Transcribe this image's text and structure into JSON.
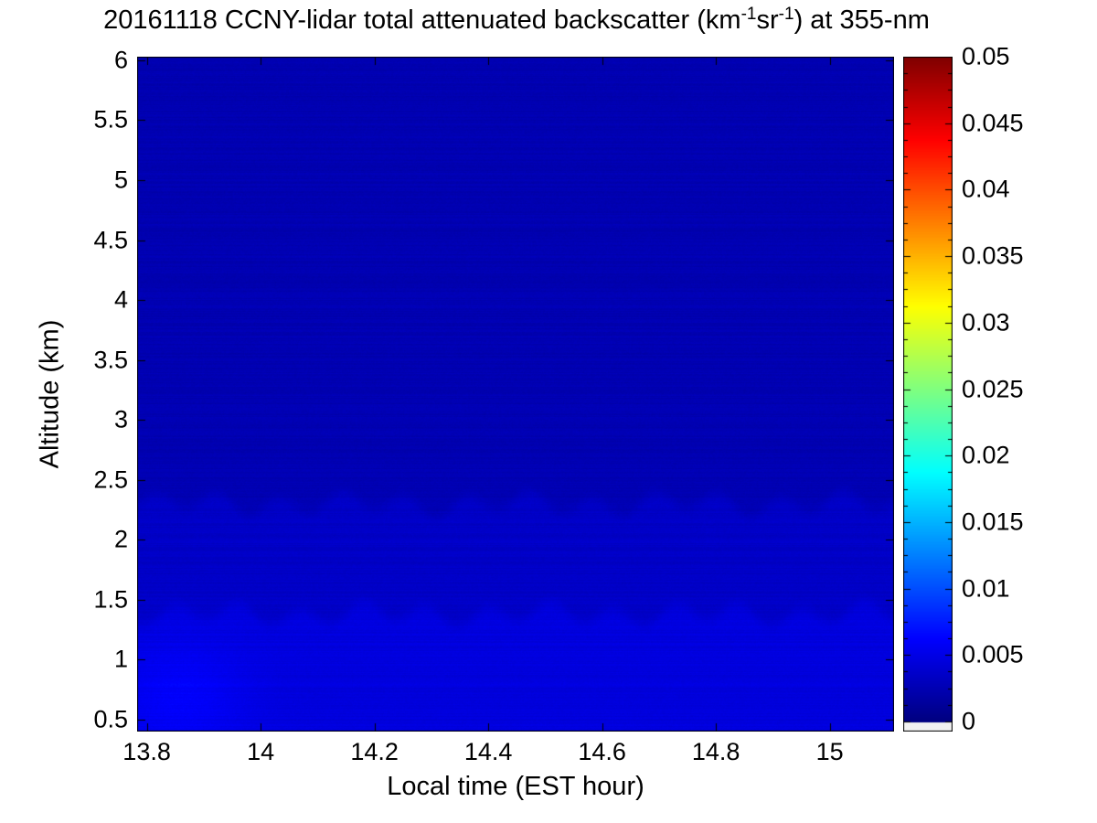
{
  "figure": {
    "title_parts": {
      "prefix": "20161118 CCNY-lidar total attenuated backscatter (km",
      "sup1": "-1",
      "mid": "sr",
      "sup2": "-1",
      "suffix": ") at 355-nm"
    }
  },
  "chart_data": {
    "type": "heatmap",
    "title": "20161118 CCNY-lidar total attenuated backscatter (km^-1 sr^-1) at 355-nm",
    "xlabel": "Local time (EST hour)",
    "ylabel": "Altitude (km)",
    "x_range": [
      13.783,
      15.113
    ],
    "y_range": [
      0.4,
      6.03
    ],
    "x_ticks": [
      13.8,
      14,
      14.2,
      14.4,
      14.6,
      14.8,
      15
    ],
    "x_tick_labels": [
      "13.8",
      "14",
      "14.2",
      "14.4",
      "14.6",
      "14.8",
      "15"
    ],
    "y_ticks": [
      0.5,
      1,
      1.5,
      2,
      2.5,
      3,
      3.5,
      4,
      4.5,
      5,
      5.5,
      6
    ],
    "y_tick_labels": [
      "0.5",
      "1",
      "1.5",
      "2",
      "2.5",
      "3",
      "3.5",
      "4",
      "4.5",
      "5",
      "5.5",
      "6"
    ],
    "grid": false,
    "colorbar": {
      "colormap": "jet",
      "vmin": 0,
      "vmax": 0.05,
      "ticks": [
        0,
        0.005,
        0.01,
        0.015,
        0.02,
        0.025,
        0.03,
        0.035,
        0.04,
        0.045,
        0.05
      ],
      "tick_labels": [
        "0",
        "0.005",
        "0.01",
        "0.015",
        "0.02",
        "0.025",
        "0.03",
        "0.035",
        "0.04",
        "0.045",
        "0.05"
      ],
      "under_color": "#f2f2f2",
      "position": "right"
    },
    "field": {
      "description": "Mostly clear atmosphere: weak backscatter aloft, slightly enhanced boundary layer below ~2.3 km, strongest near surface",
      "layers": [
        {
          "alt_min": 2.3,
          "alt_max": 6.03,
          "value": 0.0025
        },
        {
          "alt_min": 1.38,
          "alt_max": 2.3,
          "value": 0.0035
        },
        {
          "alt_min": 0.4,
          "alt_max": 1.38,
          "value": 0.0046
        }
      ],
      "boundary_wave": {
        "amplitude_km": 0.07,
        "period_hr": 0.11
      },
      "features": [
        {
          "type": "enhanced-backscatter-patch",
          "time_center": 13.86,
          "alt_center": 0.7,
          "time_sigma": 0.08,
          "alt_sigma": 0.3,
          "peak_value": 0.0062
        }
      ],
      "noise_amplitude": 0.0004
    }
  }
}
